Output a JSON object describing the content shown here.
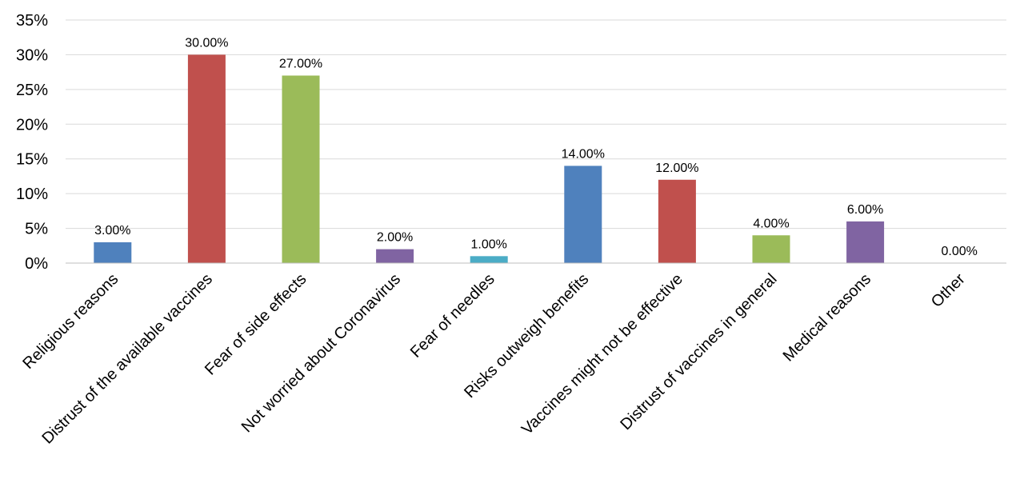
{
  "chart_data": {
    "type": "bar",
    "title": "",
    "xlabel": "",
    "ylabel": "",
    "ylim": [
      0,
      35
    ],
    "yticks": [
      0,
      5,
      10,
      15,
      20,
      25,
      30,
      35
    ],
    "ytick_labels": [
      "0%",
      "5%",
      "10%",
      "15%",
      "20%",
      "25%",
      "30%",
      "35%"
    ],
    "grid": true,
    "categories": [
      "Religious reasons",
      "Distrust of the available vaccines",
      "Fear of side effects",
      "Not worried about Coronavirus",
      "Fear of needles",
      "Risks outweigh benefits",
      "Vaccines might not be effective",
      "Distrust of vaccines in general",
      "Medical reasons",
      "Other"
    ],
    "values": [
      3,
      30,
      27,
      2,
      1,
      14,
      12,
      4,
      6,
      0
    ],
    "data_labels": [
      "3.00%",
      "30.00%",
      "27.00%",
      "2.00%",
      "1.00%",
      "14.00%",
      "12.00%",
      "4.00%",
      "6.00%",
      "0.00%"
    ],
    "colors": [
      "#4F81BD",
      "#C0504D",
      "#9BBB59",
      "#8064A2",
      "#4BACC6",
      "#4F81BD",
      "#C0504D",
      "#9BBB59",
      "#8064A2",
      "#4BACC6"
    ]
  }
}
